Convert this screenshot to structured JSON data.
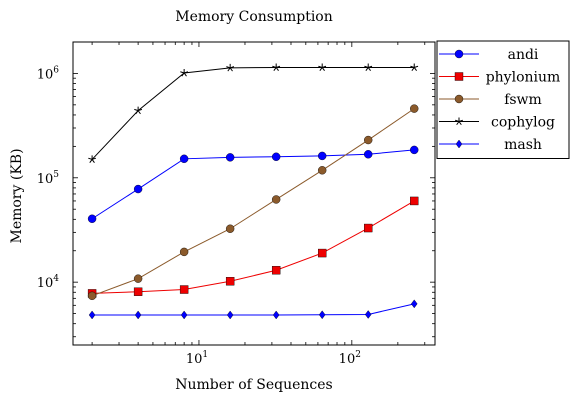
{
  "chart_data": {
    "type": "line",
    "title": "Memory Consumption",
    "xlabel": "Number of Sequences",
    "ylabel": "Memory (KB)",
    "x_scale": "log10",
    "y_scale": "log10",
    "xlim": [
      1.5,
      350
    ],
    "ylim": [
      2500,
      2000000
    ],
    "x_ticks": [
      {
        "value": 10,
        "base": "10",
        "exp": "1"
      },
      {
        "value": 100,
        "base": "10",
        "exp": "2"
      }
    ],
    "y_ticks": [
      {
        "value": 10000,
        "base": "10",
        "exp": "4"
      },
      {
        "value": 100000,
        "base": "10",
        "exp": "5"
      },
      {
        "value": 1000000,
        "base": "10",
        "exp": "6"
      }
    ],
    "grid": false,
    "legend_position": "top-right (outside plot)",
    "x": [
      2,
      4,
      8,
      16,
      32,
      64,
      128,
      256
    ],
    "series": [
      {
        "name": "andi",
        "color": "#0000ff",
        "marker": "circle",
        "values": [
          40500,
          78000,
          152000,
          157000,
          159000,
          162000,
          168000,
          185000
        ]
      },
      {
        "name": "phylonium",
        "color": "#ee0000",
        "marker": "square",
        "values": [
          7800,
          8100,
          8500,
          10200,
          13000,
          19000,
          33000,
          60000
        ]
      },
      {
        "name": "fswm",
        "color": "#8b5a2b",
        "marker": "circle",
        "values": [
          7400,
          10800,
          19500,
          32500,
          62000,
          118000,
          230000,
          460000
        ]
      },
      {
        "name": "cophylog",
        "color": "#000000",
        "marker": "star",
        "values": [
          150000,
          440000,
          1010000,
          1130000,
          1140000,
          1140000,
          1140000,
          1140000
        ]
      },
      {
        "name": "mash",
        "color": "#0000ff",
        "marker": "diamond",
        "values": [
          4850,
          4850,
          4850,
          4850,
          4850,
          4870,
          4900,
          6200
        ]
      }
    ]
  }
}
